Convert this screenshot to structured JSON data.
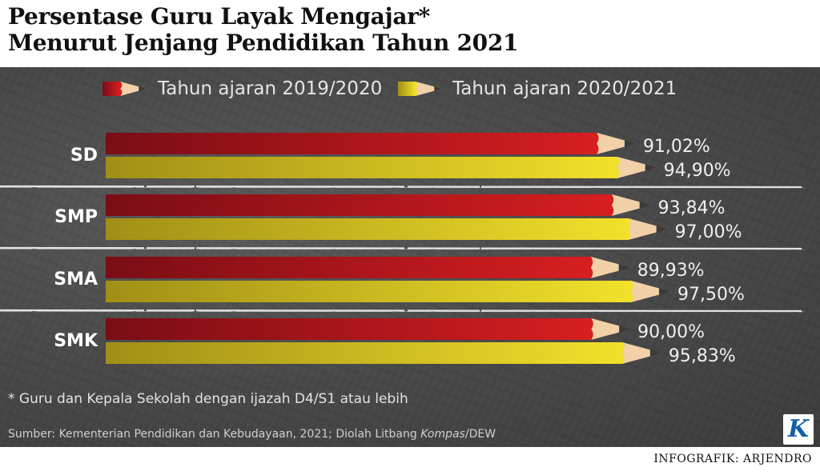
{
  "title_line1": "Persentase Guru Layak Mengajar*",
  "title_line2": "Menurut Jenjang Pendidikan Tahun 2021",
  "footnote": "* Guru dan Kepala Sekolah dengan ijazah D4/S1 atau lebih",
  "source_prefix": "Sumber: Kementerian Pendidikan dan Kebudayaan, 2021; Diolah Litbang ",
  "source_italic": "Kompas",
  "source_suffix": "/DEW",
  "logo_letter": "K",
  "credit": "INFOGRAFIK: ARJENDRO",
  "colors": {
    "series1": "#d81e20",
    "series1_dark": "#7a0d15",
    "series2": "#f2e12a",
    "series2_dark": "#a08f16",
    "wood": "#f2d0a8",
    "lead": "#3a3a3a",
    "board": "#4a4a4a"
  },
  "chart_data": {
    "type": "bar",
    "orientation": "horizontal",
    "categories": [
      "SD",
      "SMP",
      "SMA",
      "SMK"
    ],
    "series": [
      {
        "name": "Tahun ajaran 2019/2020",
        "values": [
          91.02,
          93.84,
          89.93,
          90.0
        ],
        "labels": [
          "91,02%",
          "93,84%",
          "89,93%",
          "90,00%"
        ]
      },
      {
        "name": "Tahun ajaran 2020/2021",
        "values": [
          94.9,
          97.0,
          97.5,
          95.83
        ],
        "labels": [
          "94,90%",
          "97,00%",
          "97,50%",
          "95,83%"
        ]
      }
    ],
    "legend_position": "top",
    "grid": false
  }
}
